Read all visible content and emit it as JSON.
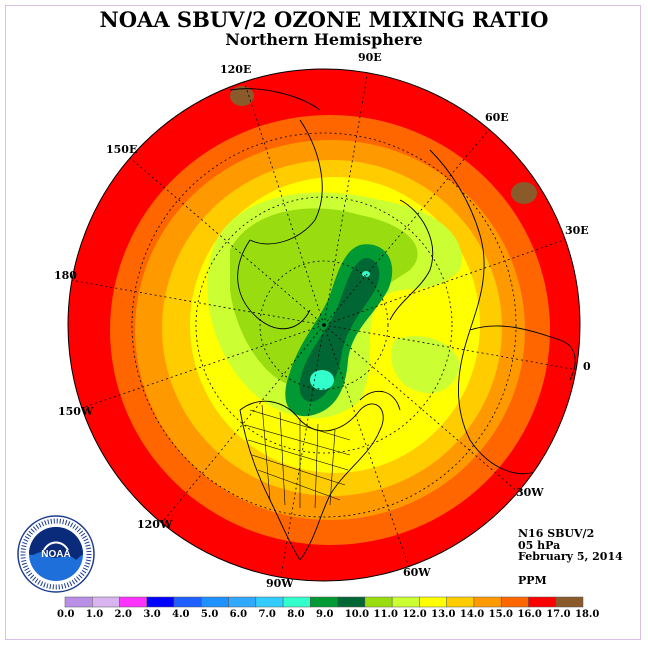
{
  "header": {
    "title": "NOAA SBUV/2 OZONE MIXING RATIO",
    "subtitle": "Northern Hemisphere"
  },
  "longitudes": [
    "90E",
    "60E",
    "30E",
    "0",
    "30W",
    "60W",
    "90W",
    "120W",
    "150W",
    "180",
    "150E",
    "120E"
  ],
  "info": {
    "instrument": "N16 SBUV/2",
    "level": "05 hPa",
    "date": "February 5, 2014",
    "units": "PPM"
  },
  "logo": {
    "text": "NOAA"
  },
  "colorbar": {
    "ticks": [
      "0.0",
      "1.0",
      "2.0",
      "3.0",
      "4.0",
      "5.0",
      "6.0",
      "7.0",
      "8.0",
      "9.0",
      "10.0",
      "11.0",
      "12.0",
      "13.0",
      "14.0",
      "15.0",
      "16.0",
      "17.0",
      "18.0"
    ],
    "colors": [
      "#b98fe6",
      "#d8b4f0",
      "#ff33ff",
      "#0000ff",
      "#1f5fff",
      "#1e90ff",
      "#33a8ff",
      "#33ccff",
      "#33ffcc",
      "#009933",
      "#006633",
      "#99dd11",
      "#ccff33",
      "#ffff00",
      "#ffcc00",
      "#ff9900",
      "#ff6600",
      "#ff0000",
      "#8b5a2b"
    ]
  }
}
